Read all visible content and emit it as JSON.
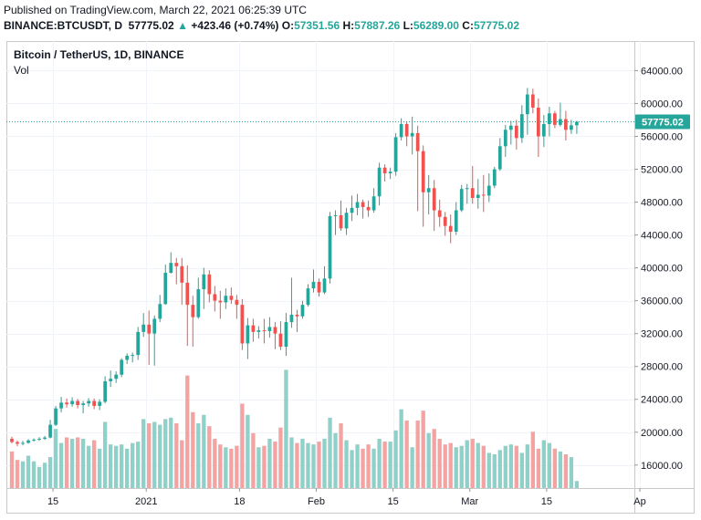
{
  "header": {
    "published": "Published on TradingView.com, March 22, 2021 06:25:39 UTC",
    "symbol": "BINANCE:BTCUSDT, D",
    "last_price": "57775.02",
    "change": "+423.46 (+0.74%)",
    "o_label": "O:",
    "o_value": "57351.56",
    "h_label": "H:",
    "h_value": "57887.26",
    "l_label": "L:",
    "l_value": "56289.00",
    "c_label": "C:",
    "c_value": "57775.02"
  },
  "chart_data": {
    "type": "candlestick",
    "title": "Bitcoin / TetherUS, 1D, BINANCE",
    "volume_label": "Vol",
    "last_price": 57775.02,
    "last_price_label": "57775.02",
    "ylim": [
      13200,
      67600
    ],
    "y_ticks": [
      16000,
      20000,
      24000,
      28000,
      32000,
      36000,
      40000,
      44000,
      48000,
      52000,
      56000,
      60000,
      64000
    ],
    "y_tick_labels": [
      "16000.00",
      "20000.00",
      "24000.00",
      "28000.00",
      "32000.00",
      "36000.00",
      "40000.00",
      "44000.00",
      "48000.00",
      "52000.00",
      "56000.00",
      "60000.00",
      "64000.00"
    ],
    "x_start": "2020-12-07",
    "x_days_span": 114,
    "x_ticks": [
      {
        "day": 8,
        "label": "15"
      },
      {
        "day": 25,
        "label": "2021"
      },
      {
        "day": 42,
        "label": "18"
      },
      {
        "day": 56,
        "label": "Feb"
      },
      {
        "day": 70,
        "label": "15"
      },
      {
        "day": 84,
        "label": "Mar"
      },
      {
        "day": 98,
        "label": "15"
      },
      {
        "day": 115,
        "label": "Ap"
      }
    ],
    "ohlc": [
      [
        19200,
        19450,
        18650,
        18800
      ],
      [
        18800,
        19000,
        18300,
        18600
      ],
      [
        18600,
        18950,
        18400,
        18700
      ],
      [
        18700,
        19150,
        18600,
        19000
      ],
      [
        19000,
        19250,
        18850,
        19100
      ],
      [
        19100,
        19400,
        18950,
        19200
      ],
      [
        19200,
        19550,
        19050,
        19350
      ],
      [
        19350,
        21500,
        19250,
        20900
      ],
      [
        20900,
        23200,
        20750,
        22900
      ],
      [
        22900,
        24300,
        22400,
        23600
      ],
      [
        23600,
        24100,
        23000,
        23400
      ],
      [
        23400,
        24250,
        23100,
        23800
      ],
      [
        23800,
        24050,
        22900,
        23300
      ],
      [
        23300,
        23800,
        22300,
        23500
      ],
      [
        23500,
        24150,
        23100,
        23800
      ],
      [
        23800,
        24100,
        22800,
        23200
      ],
      [
        23200,
        24000,
        22700,
        23700
      ],
      [
        23700,
        26800,
        23500,
        26200
      ],
      [
        26200,
        27500,
        25500,
        26500
      ],
      [
        26500,
        27400,
        26000,
        27000
      ],
      [
        27000,
        29000,
        26700,
        28800
      ],
      [
        28800,
        29600,
        28300,
        29300
      ],
      [
        29300,
        29700,
        28500,
        29400
      ],
      [
        29400,
        32800,
        28800,
        32200
      ],
      [
        32200,
        34500,
        31600,
        33100
      ],
      [
        33100,
        34800,
        28200,
        32000
      ],
      [
        32000,
        34200,
        28100,
        33800
      ],
      [
        33800,
        36700,
        33400,
        35600
      ],
      [
        35600,
        40400,
        35500,
        39400
      ],
      [
        39400,
        41900,
        39300,
        40600
      ],
      [
        40600,
        41200,
        38000,
        40200
      ],
      [
        40200,
        41200,
        35500,
        38200
      ],
      [
        38200,
        40300,
        30500,
        35500
      ],
      [
        35500,
        36600,
        30400,
        34000
      ],
      [
        34000,
        38800,
        33800,
        37400
      ],
      [
        37400,
        40000,
        35000,
        39200
      ],
      [
        39200,
        39700,
        35800,
        36800
      ],
      [
        36800,
        37800,
        34700,
        36000
      ],
      [
        36000,
        37200,
        33800,
        35800
      ],
      [
        35800,
        37500,
        35000,
        36600
      ],
      [
        36600,
        37600,
        35600,
        36100
      ],
      [
        36100,
        36700,
        33800,
        35500
      ],
      [
        35500,
        36200,
        30000,
        30800
      ],
      [
        30800,
        33900,
        28900,
        33000
      ],
      [
        33000,
        33800,
        31000,
        32200
      ],
      [
        32200,
        32900,
        31400,
        32400
      ],
      [
        32400,
        33800,
        30800,
        32300
      ],
      [
        32300,
        34000,
        31500,
        32800
      ],
      [
        32800,
        33400,
        30100,
        32000
      ],
      [
        32000,
        33500,
        30000,
        30400
      ],
      [
        30400,
        34500,
        29300,
        33400
      ],
      [
        33400,
        38800,
        32700,
        34300
      ],
      [
        34300,
        34900,
        32200,
        34100
      ],
      [
        34100,
        36000,
        33800,
        35500
      ],
      [
        35500,
        38000,
        35300,
        37500
      ],
      [
        37500,
        39800,
        37000,
        38300
      ],
      [
        38300,
        38700,
        36500,
        37000
      ],
      [
        37000,
        40200,
        36800,
        38700
      ],
      [
        38700,
        46800,
        38100,
        46300
      ],
      [
        46300,
        47000,
        44000,
        46400
      ],
      [
        46400,
        48200,
        44500,
        44800
      ],
      [
        44800,
        47300,
        44000,
        46700
      ],
      [
        46700,
        48800,
        45700,
        47300
      ],
      [
        47300,
        49000,
        46400,
        48000
      ],
      [
        48000,
        48300,
        46000,
        47400
      ],
      [
        47400,
        48200,
        46200,
        47000
      ],
      [
        47000,
        49700,
        46700,
        48700
      ],
      [
        48700,
        52800,
        47600,
        52200
      ],
      [
        52200,
        52600,
        50500,
        51500
      ],
      [
        51500,
        52200,
        50800,
        51700
      ],
      [
        51700,
        56400,
        51200,
        55900
      ],
      [
        55900,
        58200,
        55500,
        57500
      ],
      [
        57500,
        57800,
        54800,
        56000
      ],
      [
        56000,
        58400,
        53800,
        56400
      ],
      [
        56400,
        57300,
        46900,
        54200
      ],
      [
        54200,
        54900,
        45000,
        49200
      ],
      [
        49200,
        51300,
        46500,
        49700
      ],
      [
        49700,
        50700,
        44500,
        47000
      ],
      [
        47000,
        48300,
        45000,
        46200
      ],
      [
        46200,
        46800,
        43900,
        45100
      ],
      [
        45100,
        46500,
        43000,
        44400
      ],
      [
        44400,
        48000,
        44000,
        47000
      ],
      [
        47000,
        50100,
        46800,
        49600
      ],
      [
        49600,
        50200,
        47800,
        49700
      ],
      [
        49700,
        52400,
        47800,
        48500
      ],
      [
        48500,
        50800,
        47200,
        48900
      ],
      [
        48900,
        51300,
        46800,
        48800
      ],
      [
        48800,
        51500,
        48000,
        50000
      ],
      [
        50000,
        52300,
        49700,
        52000
      ],
      [
        52000,
        55800,
        51800,
        54800
      ],
      [
        54800,
        57400,
        53500,
        56800
      ],
      [
        56800,
        57900,
        55000,
        57300
      ],
      [
        57300,
        58000,
        54400,
        55800
      ],
      [
        55800,
        59800,
        55200,
        58700
      ],
      [
        58700,
        61900,
        56200,
        61100
      ],
      [
        61100,
        61800,
        58800,
        59500
      ],
      [
        59500,
        60600,
        53500,
        56000
      ],
      [
        56000,
        58600,
        54700,
        57500
      ],
      [
        57500,
        59600,
        56000,
        58800
      ],
      [
        58800,
        59100,
        57000,
        57400
      ],
      [
        57400,
        60100,
        57200,
        58100
      ],
      [
        58100,
        59100,
        55500,
        56800
      ],
      [
        56800,
        58000,
        56300,
        57350
      ],
      [
        57350,
        57900,
        56300,
        57775
      ]
    ],
    "volume": [
      52000,
      40000,
      38000,
      46000,
      38000,
      30000,
      36000,
      44000,
      84000,
      64000,
      72000,
      70000,
      72000,
      70000,
      60000,
      68000,
      56000,
      94000,
      62000,
      60000,
      62000,
      56000,
      64000,
      66000,
      98000,
      92000,
      94000,
      90000,
      98000,
      100000,
      92000,
      68000,
      160000,
      108000,
      92000,
      104000,
      88000,
      70000,
      62000,
      58000,
      56000,
      60000,
      120000,
      104000,
      78000,
      58000,
      60000,
      70000,
      66000,
      86000,
      168000,
      72000,
      64000,
      70000,
      64000,
      62000,
      66000,
      70000,
      100000,
      78000,
      92000,
      68000,
      54000,
      62000,
      56000,
      62000,
      56000,
      70000,
      66000,
      66000,
      82000,
      112000,
      96000,
      58000,
      96000,
      110000,
      78000,
      84000,
      70000,
      62000,
      64000,
      58000,
      60000,
      68000,
      70000,
      64000,
      60000,
      50000,
      48000,
      54000,
      60000,
      62000,
      60000,
      50000,
      62000,
      80000,
      56000,
      68000,
      64000,
      56000,
      52000,
      48000,
      44000,
      10000
    ],
    "volume_max": 175000
  }
}
